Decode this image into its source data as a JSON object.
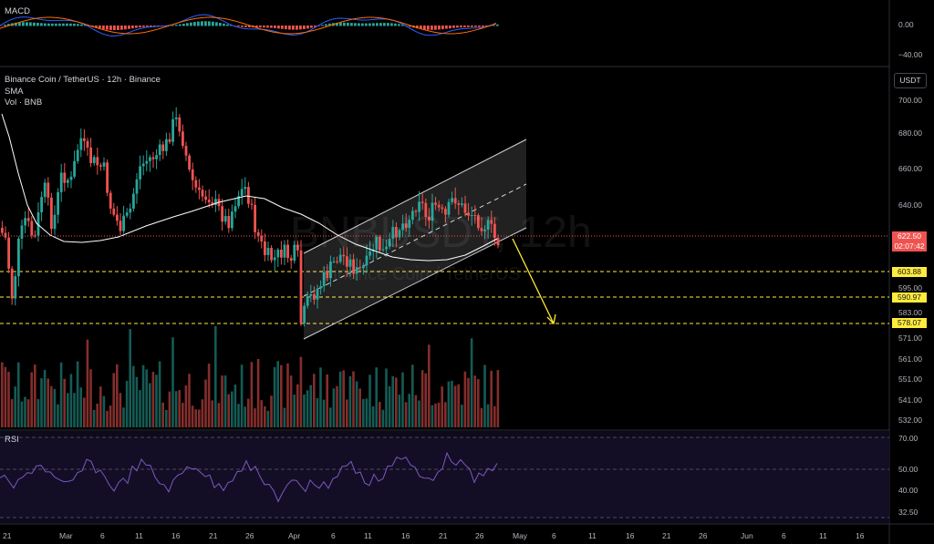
{
  "macd_pane": {
    "label": "MACD",
    "ticks": [
      "0.00",
      "−40.00"
    ]
  },
  "main_pane": {
    "symbol_title": "Binance Coin / TetherUS · 12h · Binance",
    "sma_label": "SMA",
    "vol_label": "Vol · BNB",
    "currency_button": "USDT",
    "watermark_symbol": "BNBUSDT, 12h",
    "watermark_name": "Binance Coin / TetherUS",
    "price_ticks": [
      "700.00",
      "680.00",
      "660.00",
      "640.00",
      "595.00",
      "583.00",
      "571.00",
      "561.00",
      "551.00",
      "541.00",
      "532.00"
    ],
    "current_price": "622.50",
    "countdown": "02:07:42",
    "levels": [
      "603.88",
      "590.97",
      "578.07"
    ]
  },
  "rsi_pane": {
    "label": "RSI",
    "ticks": [
      "70.00",
      "50.00",
      "40.00",
      "32.50"
    ]
  },
  "time_axis": [
    "21",
    "Mar",
    "6",
    "11",
    "16",
    "21",
    "26",
    "Apr",
    "6",
    "11",
    "16",
    "21",
    "26",
    "May",
    "6",
    "11",
    "16",
    "21",
    "26",
    "Jun",
    "6",
    "11",
    "16"
  ],
  "colors": {
    "up": "#26a69a",
    "down": "#ef5350",
    "level": "#ffeb3b",
    "sma": "#ffffff",
    "rsi": "#7e57c2",
    "macd": "#2962ff",
    "signal": "#ff6d00",
    "current": "#ef5350"
  }
}
